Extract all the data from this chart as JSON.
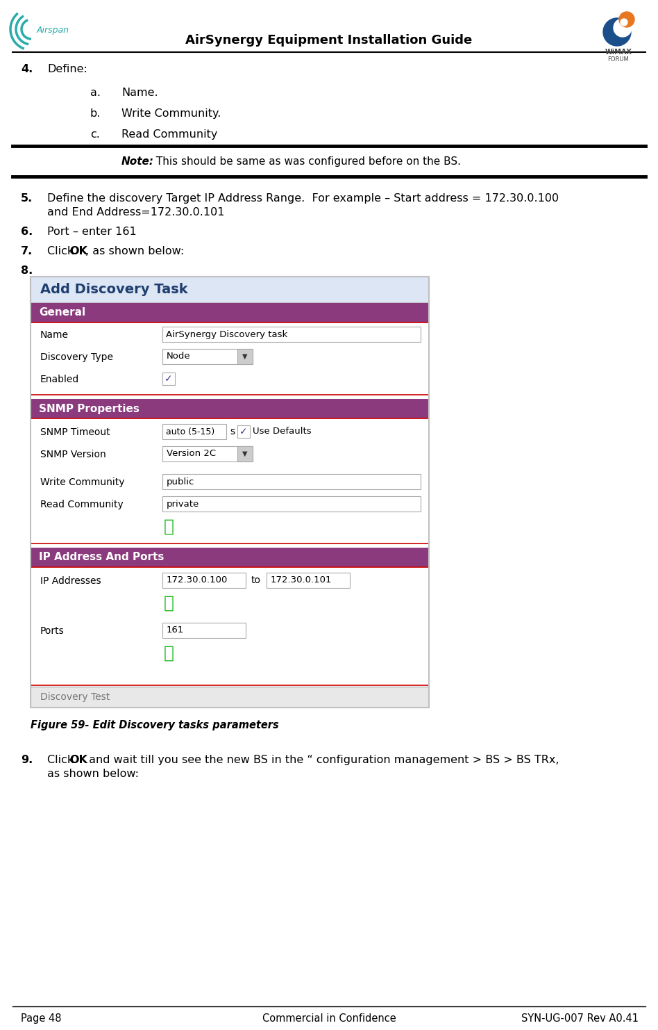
{
  "title": "AirSynergy Equipment Installation Guide",
  "page_num": "Page 48",
  "confidential": "Commercial in Confidence",
  "doc_ref": "SYN-UG-007 Rev A0.41",
  "bg_color": "#ffffff",
  "airspan_logo_color": "#2aacaa",
  "wimax_blue": "#1a4f8a",
  "wimax_orange": "#e87722",
  "section_purple": "#8b3a7e",
  "section_text": "#ffffff",
  "dialog_title_color": "#1f3e6e",
  "dialog_title_bg": "#dce6f5",
  "dialog_outer_bg": "#f0f5ff",
  "dialog_border": "#c0c0c0",
  "section_inner_bg": "#ffffff",
  "section_border": "#cc0000",
  "field_border": "#aaaaaa",
  "field_bg": "#ffffff",
  "discovery_test_bg": "#e8e8e8",
  "discovery_test_border": "#aaaaaa",
  "note_bold": "Note:",
  "note_regular": " This should be same as was configured before on the BS.",
  "figure_caption": "Figure 59- Edit Discovery tasks parameters"
}
